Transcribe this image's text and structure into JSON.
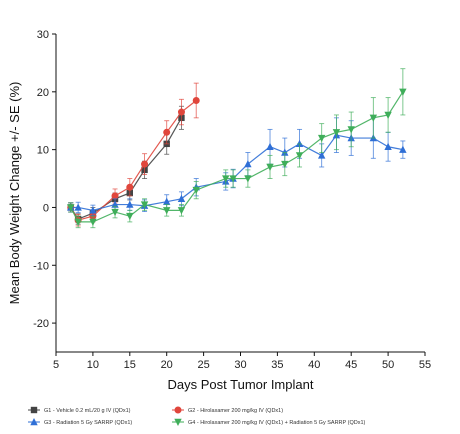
{
  "chart_data": {
    "type": "line",
    "title": "",
    "xlabel": "Days Post Tumor Implant",
    "ylabel": "Mean Body Weight Change +/- SE (%)",
    "xlim": [
      5,
      55
    ],
    "ylim": [
      -25,
      30
    ],
    "xticks": [
      5,
      10,
      15,
      20,
      25,
      30,
      35,
      40,
      45,
      50,
      55
    ],
    "yticks": [
      -20,
      -10,
      0,
      10,
      20,
      30
    ],
    "grid": false,
    "legend_position": "bottom",
    "series": [
      {
        "name": "G1 - Vehicle 0.2 mL/20 g IV (QDx1)",
        "color": "#444444",
        "marker": "square",
        "x": [
          7,
          8,
          10,
          13,
          15,
          17,
          20,
          22
        ],
        "y": [
          0,
          -2,
          -1,
          1.5,
          2.5,
          6.5,
          11,
          15.5
        ],
        "err": [
          0.8,
          0.9,
          1.0,
          1.0,
          1.2,
          1.5,
          1.8,
          2.0
        ]
      },
      {
        "name": "G2 - Hirolaxamer 200 mg/kg IV (QDx1)",
        "color": "#e0463c",
        "marker": "circle",
        "x": [
          7,
          8,
          10,
          13,
          15,
          17,
          20,
          22,
          24
        ],
        "y": [
          0,
          -2.2,
          -1.5,
          2,
          3.5,
          7.5,
          13,
          16.5,
          18.5
        ],
        "err": [
          0.8,
          1.0,
          1.0,
          1.2,
          1.5,
          1.8,
          2.0,
          2.2,
          3.0
        ]
      },
      {
        "name": "G3 - Radiation 5 Gy SARRP (QDx1)",
        "color": "#2f6fd6",
        "marker": "triangle-up",
        "x": [
          7,
          8,
          10,
          13,
          15,
          17,
          20,
          22,
          24,
          28,
          29,
          31,
          34,
          36,
          38,
          41,
          43,
          45,
          48,
          50,
          52
        ],
        "y": [
          0,
          0,
          -0.5,
          0.5,
          0.5,
          0.3,
          1,
          1.5,
          3.5,
          4.5,
          5,
          7.5,
          10.5,
          9.5,
          11,
          9,
          12.5,
          12,
          12,
          10.5,
          10
        ],
        "err": [
          0.8,
          0.9,
          0.9,
          1.0,
          1.0,
          1.0,
          1.2,
          1.2,
          1.5,
          1.5,
          1.6,
          2.0,
          3.0,
          2.5,
          2.5,
          2.0,
          3.0,
          3.0,
          3.5,
          2.5,
          1.5
        ]
      },
      {
        "name": "G4 - Hirolaxamer 200 mg/kg IV (QDx1) + Radiation 5 Gy SARRP (QDx1)",
        "color": "#3fae5a",
        "marker": "triangle-down",
        "x": [
          7,
          8,
          10,
          13,
          15,
          17,
          20,
          22,
          24,
          28,
          29,
          31,
          34,
          36,
          38,
          41,
          43,
          45,
          48,
          50,
          52
        ],
        "y": [
          0,
          -2.5,
          -2.5,
          -0.8,
          -1.5,
          0.5,
          -0.5,
          -0.5,
          3,
          5,
          5,
          5,
          7,
          7.5,
          9,
          12,
          13,
          13.5,
          15.5,
          16,
          20
        ],
        "err": [
          0.8,
          1.0,
          1.0,
          1.0,
          1.0,
          1.0,
          1.0,
          1.0,
          1.5,
          1.5,
          1.5,
          1.5,
          2.0,
          2.0,
          2.0,
          2.5,
          3.0,
          3.0,
          3.5,
          3.0,
          4.0
        ]
      }
    ]
  }
}
